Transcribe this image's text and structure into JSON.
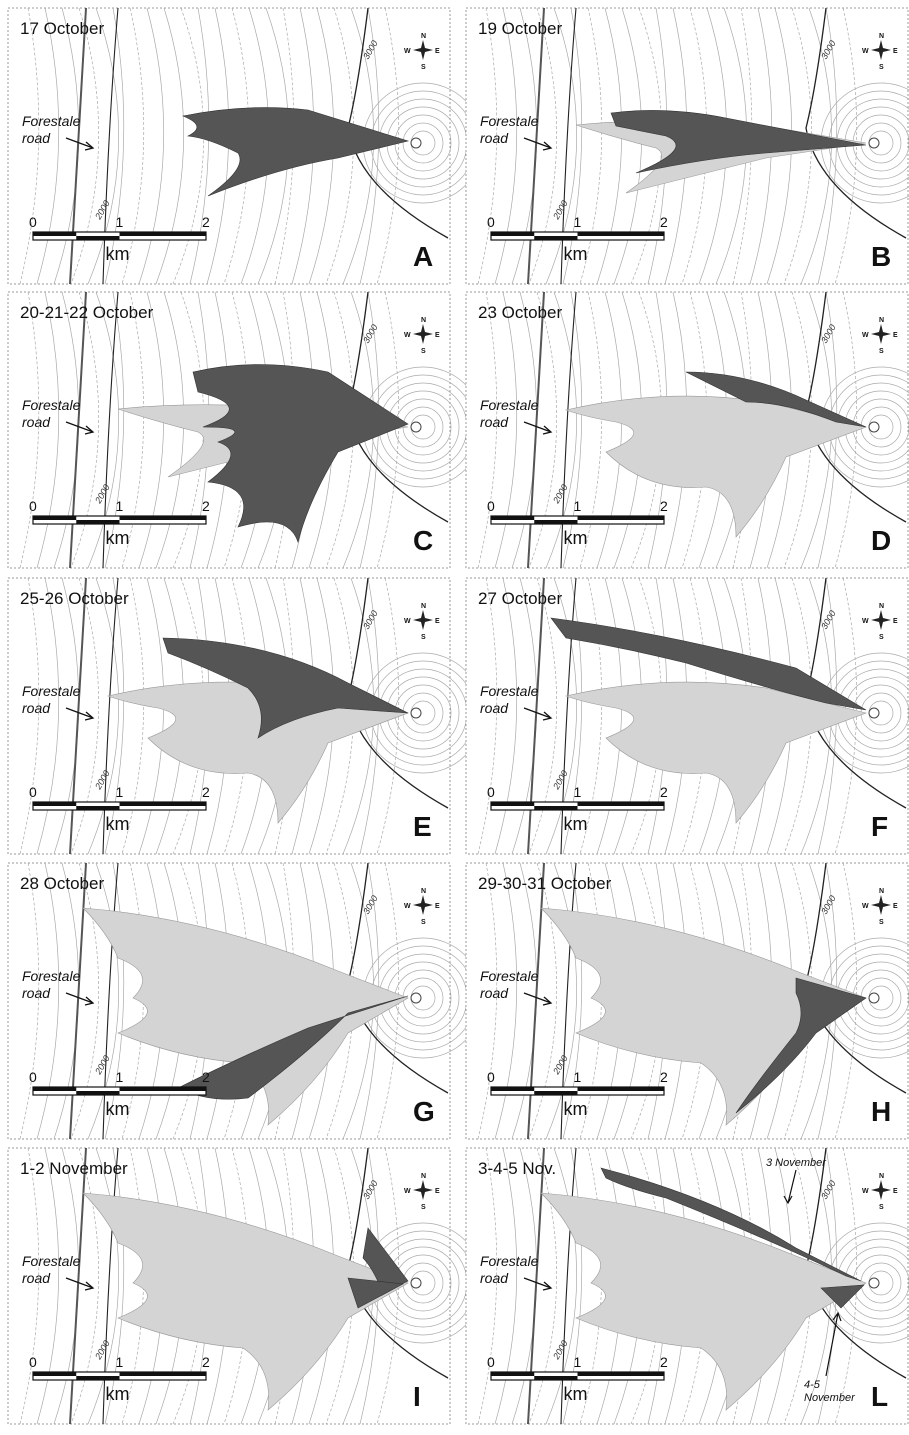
{
  "panels": [
    {
      "title": "17 October",
      "letter": "A"
    },
    {
      "title": "19 October",
      "letter": "B"
    },
    {
      "title": "20-21-22 October",
      "letter": "C"
    },
    {
      "title": "23 October",
      "letter": "D"
    },
    {
      "title": "25-26 October",
      "letter": "E"
    },
    {
      "title": "27 October",
      "letter": "F"
    },
    {
      "title": "28 October",
      "letter": "G"
    },
    {
      "title": "29-30-31 October",
      "letter": "H"
    },
    {
      "title": "1-2 November",
      "letter": "I"
    },
    {
      "title": "3-4-5 Nov.",
      "letter": "L",
      "annotations": [
        [
          "3 November"
        ],
        [
          "4-5",
          "November"
        ]
      ]
    }
  ],
  "road_label": [
    "Forestale",
    "road"
  ],
  "contour_labels": [
    "2000",
    "3000"
  ],
  "scale_bar": {
    "ticks": [
      "0",
      "1",
      "2"
    ],
    "unit": "km"
  },
  "compass": {
    "north": "N",
    "east": "E",
    "south": "S",
    "west": "W"
  }
}
